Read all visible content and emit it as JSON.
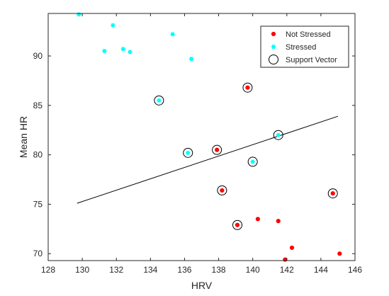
{
  "chart_data": {
    "type": "scatter",
    "title": "",
    "xlabel": "HRV",
    "ylabel": "Mean HR",
    "xlim": [
      128,
      146
    ],
    "ylim": [
      69.3,
      94.3
    ],
    "xticks": [
      128,
      130,
      132,
      134,
      136,
      138,
      140,
      142,
      144,
      146
    ],
    "yticks": [
      70,
      75,
      80,
      85,
      90
    ],
    "grid": false,
    "legend_position": "top-right",
    "series": [
      {
        "name": "Not Stressed",
        "color": "#ff0000",
        "marker": "filled-dot",
        "points": [
          [
            139.7,
            86.8
          ],
          [
            137.9,
            80.5
          ],
          [
            138.2,
            76.4
          ],
          [
            139.1,
            72.9
          ],
          [
            140.3,
            73.5
          ],
          [
            141.5,
            73.3
          ],
          [
            142.3,
            70.6
          ],
          [
            141.9,
            69.4
          ],
          [
            144.7,
            76.1
          ],
          [
            145.1,
            70.0
          ]
        ]
      },
      {
        "name": "Stressed",
        "color": "#00ffff",
        "marker": "filled-star",
        "points": [
          [
            129.8,
            94.2
          ],
          [
            131.8,
            93.1
          ],
          [
            131.3,
            90.5
          ],
          [
            132.4,
            90.7
          ],
          [
            132.8,
            90.4
          ],
          [
            135.3,
            92.2
          ],
          [
            136.4,
            89.7
          ],
          [
            134.5,
            85.5
          ],
          [
            136.2,
            80.2
          ],
          [
            140.0,
            79.3
          ],
          [
            141.5,
            82.0
          ]
        ]
      },
      {
        "name": "Support Vector",
        "color": "#000000",
        "marker": "open-circle",
        "points": [
          [
            134.5,
            85.5
          ],
          [
            139.7,
            86.8
          ],
          [
            137.9,
            80.5
          ],
          [
            136.2,
            80.2
          ],
          [
            141.5,
            82.0
          ],
          [
            140.0,
            79.3
          ],
          [
            138.2,
            76.4
          ],
          [
            139.1,
            72.9
          ],
          [
            144.7,
            76.1
          ]
        ]
      }
    ],
    "boundary": {
      "color": "#000000",
      "points": [
        [
          129.7,
          75.1
        ],
        [
          145.0,
          83.9
        ]
      ]
    }
  }
}
